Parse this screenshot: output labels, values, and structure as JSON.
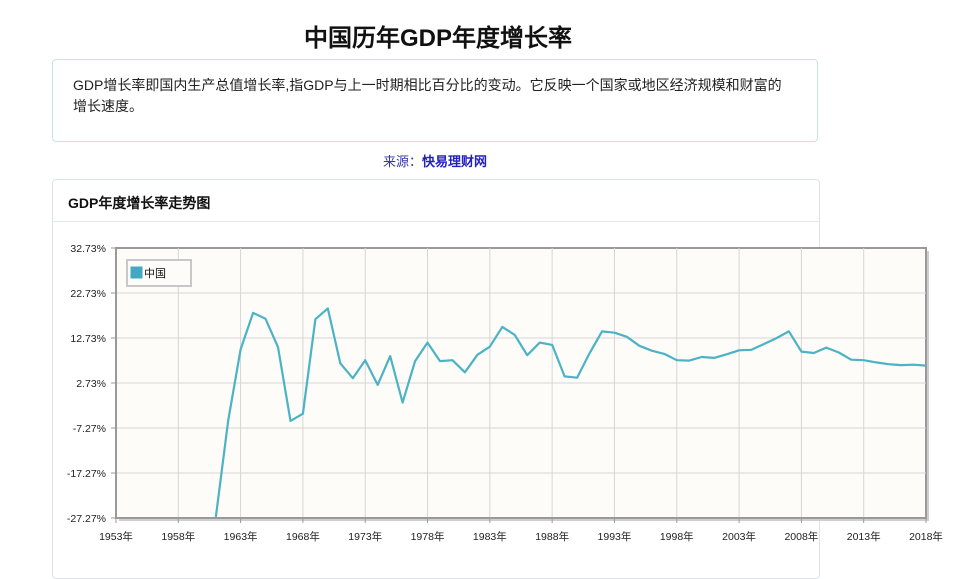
{
  "page": {
    "title": "中国历年GDP年度增长率",
    "description": "GDP增长率即国内生产总值增长率,指GDP与上一时期相比百分比的变动。它反映一个国家或地区经济规模和财富的增长速度。",
    "source_label": "来源：",
    "source_link": "快易理财网"
  },
  "card": {
    "title": "GDP年度增长率走势图"
  },
  "colors": {
    "line": "#4bb3c4",
    "legend_swatch": "#41a9c2",
    "plot_bg": "#fdfcf8",
    "grid": "#d6d6d6",
    "axis": "#999999"
  },
  "chart_data": {
    "type": "line",
    "title": "GDP年度增长率走势图",
    "xlabel": "",
    "ylabel": "",
    "legend": [
      "中国"
    ],
    "legend_position": "top-left inside",
    "grid": true,
    "ylim": [
      -27.27,
      32.73
    ],
    "yticks": [
      "32.73%",
      "22.73%",
      "12.73%",
      "2.73%",
      "-7.27%",
      "-17.27%",
      "-27.27%"
    ],
    "xticks": [
      "1953年",
      "1958年",
      "1963年",
      "1968年",
      "1973年",
      "1978年",
      "1983年",
      "1988年",
      "1993年",
      "1998年",
      "2003年",
      "2008年",
      "2013年",
      "2018年"
    ],
    "xlim": [
      1953,
      2018
    ],
    "series": [
      {
        "name": "中国",
        "x": [
          1961,
          1962,
          1963,
          1964,
          1965,
          1966,
          1967,
          1968,
          1969,
          1970,
          1971,
          1972,
          1973,
          1974,
          1975,
          1976,
          1977,
          1978,
          1979,
          1980,
          1981,
          1982,
          1983,
          1984,
          1985,
          1986,
          1987,
          1988,
          1989,
          1990,
          1991,
          1992,
          1993,
          1994,
          1995,
          1996,
          1997,
          1998,
          1999,
          2000,
          2001,
          2002,
          2003,
          2004,
          2005,
          2006,
          2007,
          2008,
          2009,
          2010,
          2011,
          2012,
          2013,
          2014,
          2015,
          2016,
          2017,
          2018
        ],
        "values": [
          -27.3,
          -5.6,
          10.2,
          18.3,
          17.0,
          10.7,
          -5.7,
          -4.1,
          16.9,
          19.3,
          7.1,
          3.8,
          7.8,
          2.3,
          8.7,
          -1.6,
          7.6,
          11.7,
          7.6,
          7.8,
          5.1,
          9.0,
          10.8,
          15.2,
          13.4,
          8.9,
          11.7,
          11.2,
          4.2,
          3.9,
          9.3,
          14.2,
          13.9,
          13.0,
          11.0,
          9.9,
          9.2,
          7.8,
          7.7,
          8.5,
          8.3,
          9.1,
          10.0,
          10.1,
          11.4,
          12.7,
          14.2,
          9.7,
          9.4,
          10.6,
          9.5,
          7.9,
          7.8,
          7.3,
          6.9,
          6.7,
          6.8,
          6.6
        ]
      }
    ]
  }
}
